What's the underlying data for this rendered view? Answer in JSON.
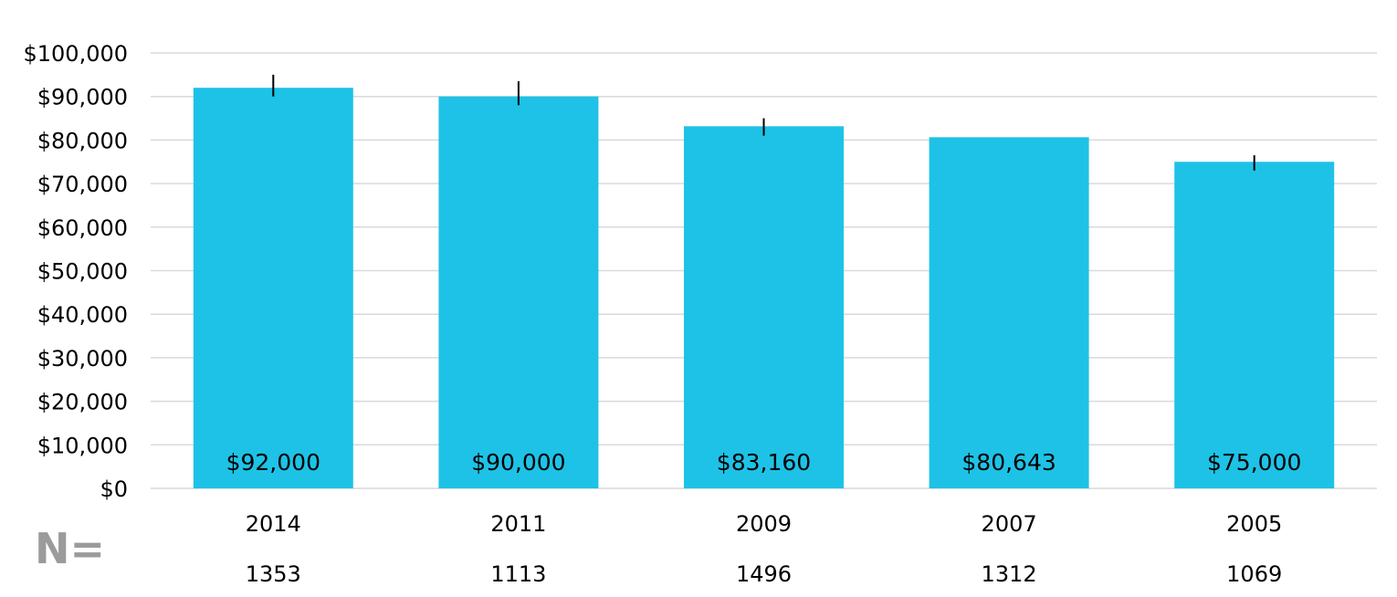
{
  "chart_data": {
    "type": "bar",
    "categories": [
      "2014",
      "2011",
      "2009",
      "2007",
      "2005"
    ],
    "values": [
      92000,
      90000,
      83160,
      80643,
      75000
    ],
    "data_labels": [
      "$92,000",
      "$90,000",
      "$83,160",
      "$80,643",
      "$75,000"
    ],
    "error_bars": [
      {
        "low": 90000,
        "high": 95000
      },
      {
        "low": 88000,
        "high": 93500
      },
      {
        "low": 81000,
        "high": 85000
      },
      null,
      {
        "low": 73000,
        "high": 76500
      }
    ],
    "n_label": "N=",
    "n_values": [
      "1353",
      "1113",
      "1496",
      "1312",
      "1069"
    ],
    "y_ticks": [
      0,
      10000,
      20000,
      30000,
      40000,
      50000,
      60000,
      70000,
      80000,
      90000,
      100000
    ],
    "y_tick_labels": [
      "$0",
      "$10,000",
      "$20,000",
      "$30,000",
      "$40,000",
      "$50,000",
      "$60,000",
      "$70,000",
      "$80,000",
      "$90,000",
      "$100,000"
    ],
    "ylim": [
      0,
      100000
    ],
    "grid": true,
    "colors": {
      "bar": "#1ec2e6",
      "grid": "#d9d9d9",
      "error_bar": "#000000",
      "n_label": "#9b9b9b"
    }
  }
}
